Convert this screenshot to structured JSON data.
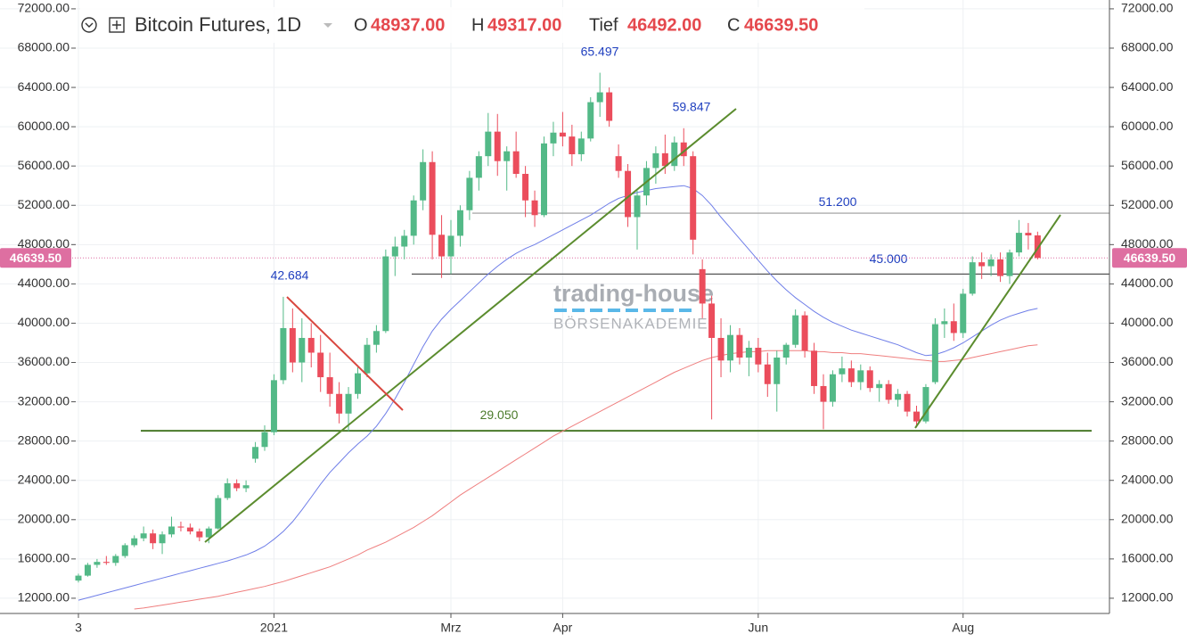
{
  "chart_data": {
    "type": "candlestick",
    "title": "Bitcoin Futures, 1D",
    "header": [
      {
        "key": "O",
        "value": 48937,
        "label": "48937.00"
      },
      {
        "key": "H",
        "value": 49317,
        "label": "49317.00"
      },
      {
        "key": "Tief",
        "value": 46492,
        "label": "46492.00"
      },
      {
        "key": "C",
        "value": 46639.5,
        "label": "46639.50"
      }
    ],
    "categories": [
      "3",
      null,
      null,
      null,
      null,
      null,
      null,
      null,
      null,
      null,
      null,
      null,
      null,
      null,
      null,
      null,
      null,
      null,
      null,
      null,
      null,
      "2021",
      null,
      null,
      null,
      null,
      null,
      null,
      null,
      null,
      null,
      null,
      null,
      null,
      null,
      null,
      null,
      null,
      null,
      null,
      "Mrz",
      null,
      null,
      null,
      null,
      null,
      null,
      null,
      null,
      null,
      null,
      null,
      "Apr",
      null,
      null,
      null,
      null,
      null,
      null,
      null,
      null,
      null,
      null,
      null,
      null,
      null,
      null,
      null,
      null,
      null,
      null,
      null,
      null,
      "Jun",
      null,
      null,
      null,
      null,
      null,
      null,
      null,
      null,
      null,
      null,
      null,
      null,
      null,
      null,
      null,
      null,
      null,
      null,
      null,
      null,
      null,
      "Aug",
      null,
      null,
      null,
      null,
      null,
      null,
      null,
      null
    ],
    "ohlc": [
      [
        13800,
        14500,
        13600,
        14300
      ],
      [
        14300,
        15600,
        14200,
        15400
      ],
      [
        15400,
        16000,
        15100,
        15700
      ],
      [
        15700,
        16300,
        15400,
        15600
      ],
      [
        15600,
        16500,
        15300,
        16300
      ],
      [
        16300,
        17600,
        16100,
        17400
      ],
      [
        17400,
        18400,
        17200,
        18100
      ],
      [
        18100,
        19300,
        17800,
        18600
      ],
      [
        18600,
        19000,
        17000,
        17600
      ],
      [
        17600,
        18800,
        16500,
        18500
      ],
      [
        18500,
        20300,
        18200,
        19300
      ],
      [
        19300,
        19800,
        18800,
        19200
      ],
      [
        19200,
        19600,
        18500,
        18800
      ],
      [
        18800,
        19100,
        17800,
        18200
      ],
      [
        18200,
        19300,
        17600,
        19100
      ],
      [
        19100,
        22500,
        19000,
        22200
      ],
      [
        22200,
        24200,
        22000,
        23700
      ],
      [
        23700,
        24100,
        22900,
        23200
      ],
      [
        23200,
        24000,
        22800,
        23500
      ],
      [
        26200,
        27900,
        25800,
        27400
      ],
      [
        27400,
        29600,
        27000,
        28900
      ],
      [
        28900,
        34800,
        28600,
        34200
      ],
      [
        34200,
        42684,
        33800,
        39500
      ],
      [
        39500,
        41500,
        35000,
        36000
      ],
      [
        36000,
        40500,
        34000,
        38500
      ],
      [
        38500,
        40000,
        35500,
        37000
      ],
      [
        37000,
        38800,
        33000,
        34500
      ],
      [
        34500,
        37000,
        31500,
        32800
      ],
      [
        32800,
        34000,
        29800,
        30800
      ],
      [
        30800,
        33500,
        29000,
        32800
      ],
      [
        32800,
        35500,
        32300,
        34900
      ],
      [
        34900,
        38500,
        34500,
        37800
      ],
      [
        37800,
        39800,
        37000,
        39200
      ],
      [
        39200,
        47500,
        39000,
        46800
      ],
      [
        46800,
        48800,
        44800,
        47800
      ],
      [
        47800,
        49500,
        46500,
        48900
      ],
      [
        48900,
        53000,
        48000,
        52500
      ],
      [
        52500,
        57700,
        51500,
        56400
      ],
      [
        56400,
        57500,
        46500,
        49000
      ],
      [
        49000,
        51000,
        44600,
        46800
      ],
      [
        46800,
        50500,
        45000,
        48900
      ],
      [
        48900,
        52000,
        47800,
        51500
      ],
      [
        51500,
        55500,
        50500,
        54800
      ],
      [
        54800,
        57500,
        53500,
        57000
      ],
      [
        57000,
        61400,
        56000,
        59500
      ],
      [
        59500,
        61300,
        55000,
        56500
      ],
      [
        56500,
        58000,
        53500,
        57500
      ],
      [
        57500,
        59500,
        54800,
        55200
      ],
      [
        55200,
        56000,
        50800,
        52500
      ],
      [
        52500,
        53500,
        49800,
        51000
      ],
      [
        51000,
        59000,
        50800,
        58300
      ],
      [
        58300,
        60500,
        57000,
        59400
      ],
      [
        59400,
        61500,
        58000,
        59000
      ],
      [
        59000,
        60200,
        56000,
        57200
      ],
      [
        57200,
        59500,
        56500,
        58800
      ],
      [
        58800,
        63000,
        58500,
        62500
      ],
      [
        62500,
        65497,
        61000,
        63500
      ],
      [
        63500,
        64000,
        60000,
        60600
      ],
      [
        57000,
        58200,
        54800,
        55500
      ],
      [
        55500,
        56200,
        49800,
        50800
      ],
      [
        50800,
        53500,
        47500,
        53000
      ],
      [
        53000,
        56500,
        52000,
        55800
      ],
      [
        55800,
        58000,
        54200,
        57300
      ],
      [
        57300,
        59200,
        55200,
        56000
      ],
      [
        56000,
        59000,
        55500,
        58400
      ],
      [
        58400,
        59847,
        56000,
        57000
      ],
      [
        57000,
        57500,
        47000,
        48500
      ],
      [
        45500,
        46500,
        40500,
        42000
      ],
      [
        42000,
        42800,
        30200,
        38500
      ],
      [
        38500,
        40500,
        34500,
        36200
      ],
      [
        36200,
        39800,
        35000,
        38800
      ],
      [
        38800,
        39500,
        35800,
        36500
      ],
      [
        36500,
        38200,
        34600,
        37500
      ],
      [
        37500,
        38500,
        35000,
        35800
      ],
      [
        35800,
        37000,
        32500,
        33800
      ],
      [
        33800,
        37200,
        31000,
        36500
      ],
      [
        36500,
        38000,
        35800,
        37800
      ],
      [
        37800,
        41400,
        37500,
        40800
      ],
      [
        40800,
        41200,
        36500,
        37200
      ],
      [
        37200,
        38000,
        32800,
        33600
      ],
      [
        33600,
        34800,
        29200,
        32000
      ],
      [
        32000,
        35200,
        31500,
        34800
      ],
      [
        34800,
        36600,
        34000,
        35400
      ],
      [
        35400,
        36200,
        33500,
        34000
      ],
      [
        34000,
        35800,
        33200,
        35200
      ],
      [
        35200,
        35600,
        33000,
        33400
      ],
      [
        33400,
        34200,
        32000,
        33800
      ],
      [
        33800,
        34200,
        31800,
        32200
      ],
      [
        32200,
        33300,
        31500,
        32800
      ],
      [
        32800,
        33100,
        30500,
        31000
      ],
      [
        31000,
        31600,
        29500,
        30000
      ],
      [
        30000,
        33800,
        29800,
        33500
      ],
      [
        34000,
        40500,
        33800,
        39900
      ],
      [
        39900,
        41500,
        38500,
        40200
      ],
      [
        40200,
        42000,
        38200,
        39000
      ],
      [
        39000,
        43500,
        38500,
        43000
      ],
      [
        43000,
        46800,
        42800,
        46200
      ],
      [
        46200,
        47200,
        44500,
        45800
      ],
      [
        45800,
        47000,
        44800,
        46500
      ],
      [
        46500,
        47200,
        44200,
        44800
      ],
      [
        44800,
        47500,
        44000,
        47200
      ],
      [
        47200,
        50500,
        46800,
        49200
      ],
      [
        49200,
        50200,
        47500,
        48937
      ],
      [
        48937,
        49317,
        46492,
        46639.5
      ]
    ],
    "up_color": "#53b987",
    "down_color": "#eb4d5c",
    "series": [
      {
        "color": "#6f7ee8",
        "values": [
          11800,
          12050,
          12300,
          12550,
          12800,
          13050,
          13300,
          13550,
          13800,
          14050,
          14300,
          14550,
          14800,
          15050,
          15300,
          15550,
          15800,
          16100,
          16400,
          16800,
          17300,
          18000,
          18800,
          19800,
          21000,
          22300,
          23600,
          24800,
          25800,
          26800,
          27700,
          28500,
          29500,
          30800,
          32300,
          34000,
          35800,
          37600,
          39200,
          40400,
          41400,
          42300,
          43200,
          44100,
          45000,
          45800,
          46500,
          47100,
          47600,
          48000,
          48500,
          49000,
          49500,
          50000,
          50500,
          51000,
          51600,
          52200,
          52700,
          53000,
          53300,
          53500,
          53700,
          53800,
          53900,
          54000,
          53700,
          53000,
          52000,
          50800,
          49700,
          48600,
          47500,
          46400,
          45300,
          44300,
          43400,
          42600,
          41900,
          41200,
          40600,
          40100,
          39700,
          39300,
          39000,
          38700,
          38400,
          38100,
          37800,
          37400,
          37000,
          36700,
          36800,
          37100,
          37500,
          38000,
          38600,
          39200,
          39800,
          40300,
          40700,
          41000,
          41300,
          41500
        ]
      },
      {
        "color": "#ef7f7f",
        "values": [
          null,
          null,
          null,
          null,
          null,
          null,
          10900,
          11000,
          11150,
          11300,
          11450,
          11600,
          11750,
          11900,
          12050,
          12200,
          12400,
          12600,
          12800,
          13000,
          13200,
          13450,
          13700,
          14000,
          14300,
          14600,
          14900,
          15200,
          15600,
          16000,
          16400,
          16900,
          17300,
          17700,
          18200,
          18700,
          19200,
          19800,
          20400,
          21100,
          21800,
          22500,
          23100,
          23700,
          24300,
          24900,
          25500,
          26100,
          26700,
          27300,
          27900,
          28500,
          29000,
          29500,
          30000,
          30500,
          31000,
          31500,
          32000,
          32500,
          33000,
          33500,
          34000,
          34500,
          35000,
          35400,
          35800,
          36200,
          36500,
          36700,
          36900,
          37000,
          37100,
          37100,
          37200,
          37200,
          37200,
          37200,
          37200,
          37100,
          37100,
          37000,
          37000,
          36900,
          36900,
          36800,
          36700,
          36600,
          36500,
          36400,
          36300,
          36200,
          36100,
          36100,
          36200,
          36300,
          36500,
          36700,
          36900,
          37100,
          37300,
          37500,
          37700,
          37800
        ]
      }
    ],
    "ylim": [
      10450,
      72900
    ],
    "yticks": [
      {
        "value": 12000,
        "label": "12000.00"
      },
      {
        "value": 16000,
        "label": "16000.00"
      },
      {
        "value": 20000,
        "label": "20000.00"
      },
      {
        "value": 24000,
        "label": "24000.00"
      },
      {
        "value": 28000,
        "label": "28000.00"
      },
      {
        "value": 32000,
        "label": "32000.00"
      },
      {
        "value": 36000,
        "label": "36000.00"
      },
      {
        "value": 40000,
        "label": "40000.00"
      },
      {
        "value": 44000,
        "label": "44000.00"
      },
      {
        "value": 48000,
        "label": "48000.00"
      },
      {
        "value": 52000,
        "label": "52000.00"
      },
      {
        "value": 56000,
        "label": "56000.00"
      },
      {
        "value": 60000,
        "label": "60000.00"
      },
      {
        "value": 64000,
        "label": "64000.00"
      },
      {
        "value": 68000,
        "label": "68000.00"
      },
      {
        "value": 72000,
        "label": "72000.00"
      }
    ],
    "grid": true,
    "levels": [
      {
        "value": 51200,
        "label": "51.200",
        "color": "#9a9a9a"
      },
      {
        "value": 45000,
        "label": "45.000",
        "color": "#555555"
      },
      {
        "value": 29050,
        "label": "29.050",
        "color": "#4a7a2a"
      }
    ],
    "peaks": [
      {
        "value": 65497,
        "label": "65.497"
      },
      {
        "value": 59847,
        "label": "59.847"
      },
      {
        "value": 42684,
        "label": "42.684"
      }
    ],
    "last_price": {
      "value": 46639.5,
      "label": "46639.50",
      "color": "#de6fa1"
    }
  },
  "watermark": {
    "brand": "trading-house",
    "sub": "BÖRSENAKADEMIE"
  }
}
